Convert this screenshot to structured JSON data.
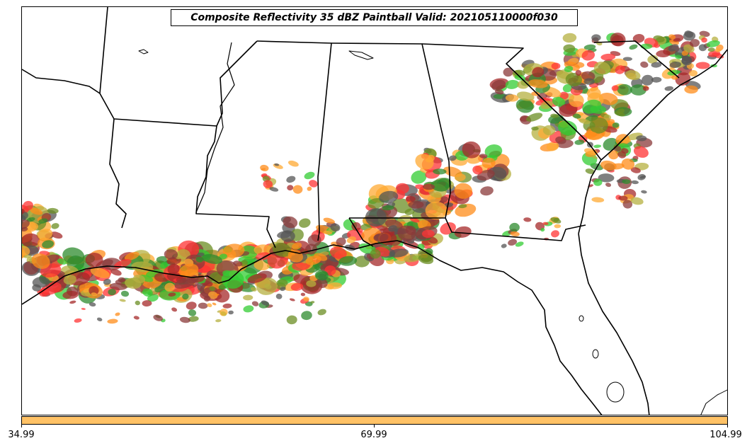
{
  "map": {
    "title": "Composite Reflectivity 35 dBZ Paintball Valid: 202105110000f030",
    "colorbar": {
      "color": "#ffc266",
      "tick_labels": [
        "34.99",
        "69.99",
        "104.99"
      ]
    },
    "paintball_colors": [
      "#ff3333",
      "#ff8c1a",
      "#ffaa33",
      "#33cc33",
      "#2e8b2e",
      "#6b8e23",
      "#b5b040",
      "#a52a2a",
      "#8b3a3a",
      "#555555"
    ],
    "boundary_color": "#000000",
    "background_color": "#ffffff"
  }
}
